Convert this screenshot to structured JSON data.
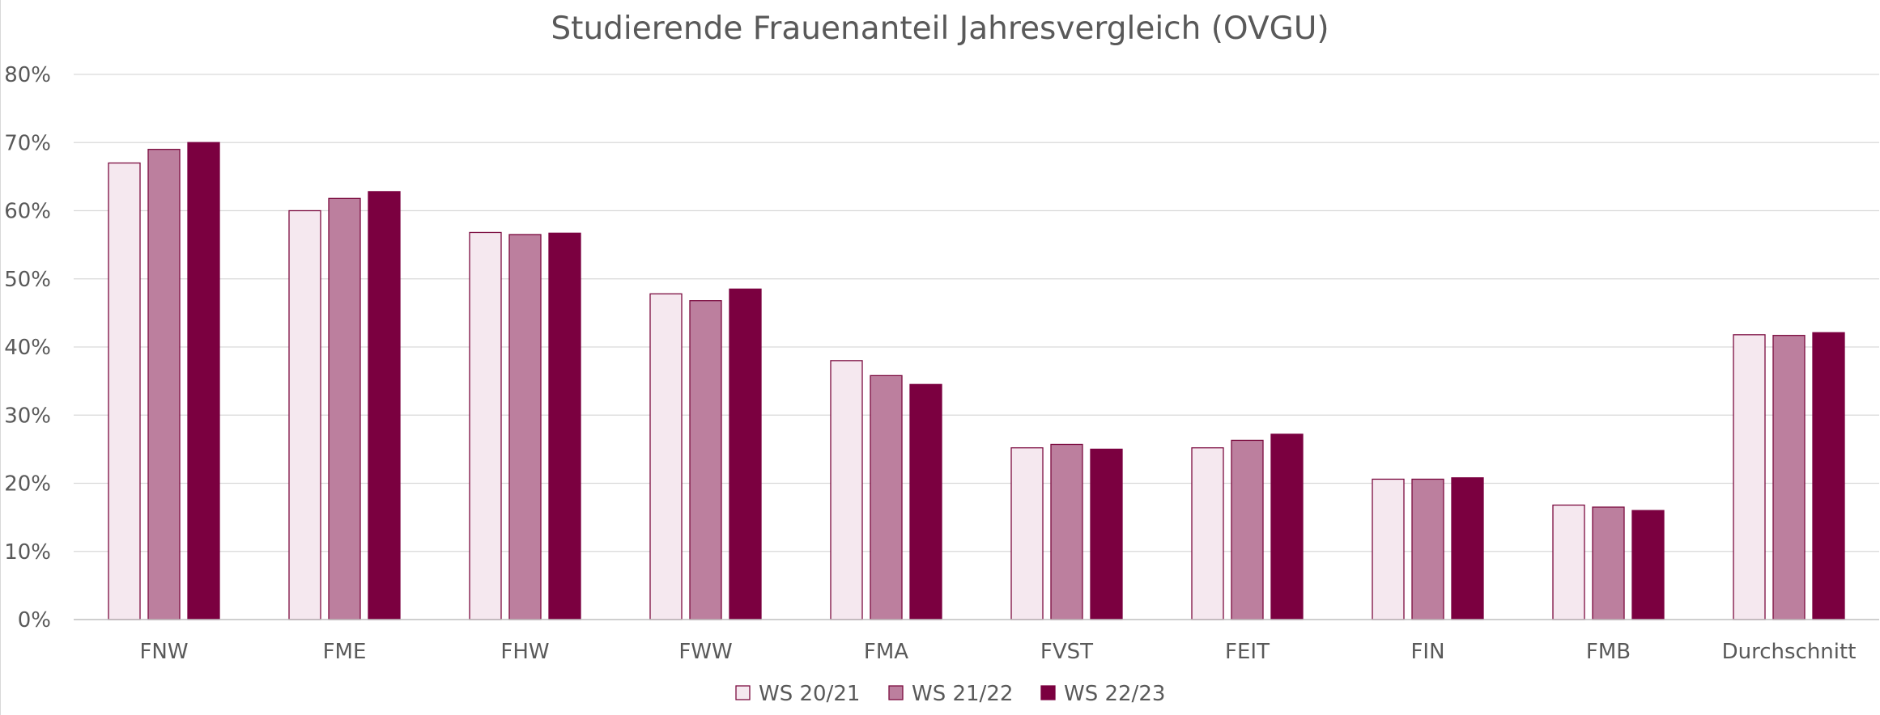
{
  "chart_data": {
    "type": "bar",
    "title": "Studierende Frauenanteil Jahresvergleich (OVGU)",
    "xlabel": "",
    "ylabel": "",
    "ylim": [
      0,
      80
    ],
    "yticks": [
      "0%",
      "10%",
      "20%",
      "30%",
      "40%",
      "50%",
      "60%",
      "70%",
      "80%"
    ],
    "grid": true,
    "legend_position": "bottom",
    "categories": [
      "FNW",
      "FME",
      "FHW",
      "FWW",
      "FMA",
      "FVST",
      "FEIT",
      "FIN",
      "FMB",
      "Durchschnitt"
    ],
    "series": [
      {
        "name": "WS 20/21",
        "fill": "#f5e8ef",
        "stroke": "#7b0b3f",
        "values": [
          67,
          60,
          56.8,
          47.8,
          38,
          25.2,
          25.2,
          20.6,
          16.8,
          41.8
        ]
      },
      {
        "name": "WS 21/22",
        "fill": "#bc7f9e",
        "stroke": "#7b0b3f",
        "values": [
          69,
          61.8,
          56.5,
          46.8,
          35.8,
          25.7,
          26.3,
          20.6,
          16.5,
          41.7
        ]
      },
      {
        "name": "WS 22/23",
        "fill": "#7b0040",
        "stroke": "#7b0040",
        "values": [
          70,
          62.8,
          56.7,
          48.5,
          34.5,
          25,
          27.2,
          20.8,
          16,
          42.1
        ]
      }
    ]
  }
}
